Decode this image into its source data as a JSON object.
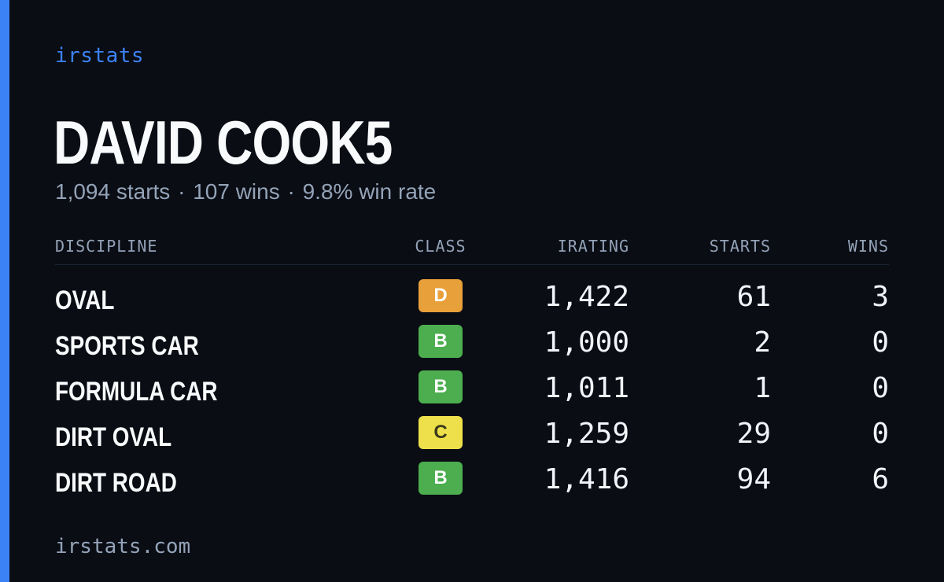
{
  "brand": "irstats",
  "driver": {
    "name": "DAVID COOK5"
  },
  "summary": {
    "starts": "1,094 starts",
    "wins": "107 wins",
    "win_rate": "9.8% win rate",
    "separator": "·"
  },
  "table": {
    "headers": {
      "discipline": "DISCIPLINE",
      "class": "CLASS",
      "irating": "IRATING",
      "starts": "STARTS",
      "wins": "WINS"
    },
    "rows": [
      {
        "discipline": "OVAL",
        "class": "D",
        "irating": "1,422",
        "starts": "61",
        "wins": "3"
      },
      {
        "discipline": "SPORTS CAR",
        "class": "B",
        "irating": "1,000",
        "starts": "2",
        "wins": "0"
      },
      {
        "discipline": "FORMULA CAR",
        "class": "B",
        "irating": "1,011",
        "starts": "1",
        "wins": "0"
      },
      {
        "discipline": "DIRT OVAL",
        "class": "C",
        "irating": "1,259",
        "starts": "29",
        "wins": "0"
      },
      {
        "discipline": "DIRT ROAD",
        "class": "B",
        "irating": "1,416",
        "starts": "94",
        "wins": "6"
      }
    ]
  },
  "footer": "irstats.com",
  "colors": {
    "background": "#0a0d14",
    "accent": "#3b82f6",
    "class_D": "#e8a03a",
    "class_B": "#4cae4f",
    "class_C": "#eee04a"
  }
}
